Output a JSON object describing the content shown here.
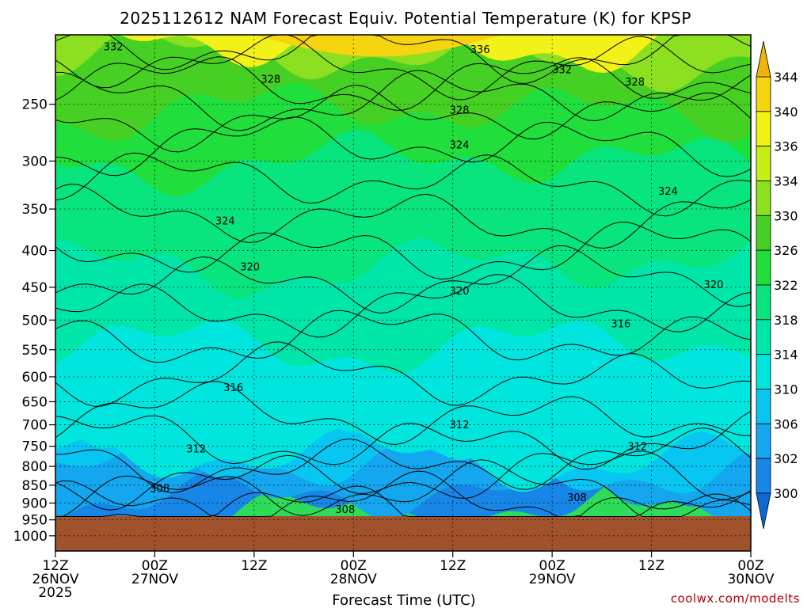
{
  "chart_data": {
    "type": "heatmap",
    "title": "2025112612 NAM Forecast Equiv. Potential Temperature (K) for KPSP",
    "xlabel": "Forecast Time (UTC)",
    "ylabel": "",
    "y_scale": "log",
    "y_inverted": true,
    "y_ticks": [
      250,
      300,
      350,
      400,
      450,
      500,
      550,
      600,
      650,
      700,
      750,
      800,
      850,
      900,
      950,
      1000
    ],
    "y_range": [
      200,
      1050
    ],
    "x_ticks": [
      {
        "hour": 0,
        "lines": [
          "12Z",
          "26NOV",
          "2025"
        ]
      },
      {
        "hour": 12,
        "lines": [
          "00Z",
          "27NOV"
        ]
      },
      {
        "hour": 24,
        "lines": [
          "12Z"
        ]
      },
      {
        "hour": 36,
        "lines": [
          "00Z",
          "28NOV"
        ]
      },
      {
        "hour": 48,
        "lines": [
          "12Z"
        ]
      },
      {
        "hour": 60,
        "lines": [
          "00Z",
          "29NOV"
        ]
      },
      {
        "hour": 72,
        "lines": [
          "12Z"
        ]
      },
      {
        "hour": 84,
        "lines": [
          "00Z",
          "30NOV"
        ]
      }
    ],
    "x_range": [
      0,
      84
    ],
    "grid": true,
    "ground_pressure": 940,
    "colorbar": {
      "levels": [
        300,
        302,
        306,
        310,
        314,
        318,
        322,
        326,
        330,
        334,
        336,
        340,
        344
      ],
      "colors": [
        "#0c6ad2",
        "#1886e6",
        "#14a6ef",
        "#08c6f2",
        "#00e6de",
        "#00e6a8",
        "#08e47e",
        "#20de3c",
        "#46d024",
        "#8ce020",
        "#c8ee18",
        "#f2f218",
        "#f6d410",
        "#f0b40a"
      ]
    },
    "contour_labels": [
      {
        "text": "332",
        "hour": 7.0,
        "p": 208
      },
      {
        "text": "336",
        "hour": 51.3,
        "p": 210
      },
      {
        "text": "328",
        "hour": 26.0,
        "p": 231
      },
      {
        "text": "332",
        "hour": 61.2,
        "p": 224
      },
      {
        "text": "328",
        "hour": 70.0,
        "p": 233
      },
      {
        "text": "328",
        "hour": 48.8,
        "p": 255
      },
      {
        "text": "324",
        "hour": 48.8,
        "p": 285
      },
      {
        "text": "324",
        "hour": 74.0,
        "p": 331
      },
      {
        "text": "324",
        "hour": 20.5,
        "p": 364
      },
      {
        "text": "320",
        "hour": 23.5,
        "p": 422
      },
      {
        "text": "320",
        "hour": 48.8,
        "p": 456
      },
      {
        "text": "320",
        "hour": 79.5,
        "p": 447
      },
      {
        "text": "316",
        "hour": 68.3,
        "p": 507
      },
      {
        "text": "316",
        "hour": 21.5,
        "p": 622
      },
      {
        "text": "312",
        "hour": 48.8,
        "p": 701
      },
      {
        "text": "312",
        "hour": 17.0,
        "p": 757
      },
      {
        "text": "312",
        "hour": 70.3,
        "p": 752
      },
      {
        "text": "308",
        "hour": 12.6,
        "p": 860
      },
      {
        "text": "308",
        "hour": 63.0,
        "p": 886
      },
      {
        "text": "308",
        "hour": 35.0,
        "p": 920
      }
    ]
  },
  "watermark": "coolwx.com/modelts"
}
